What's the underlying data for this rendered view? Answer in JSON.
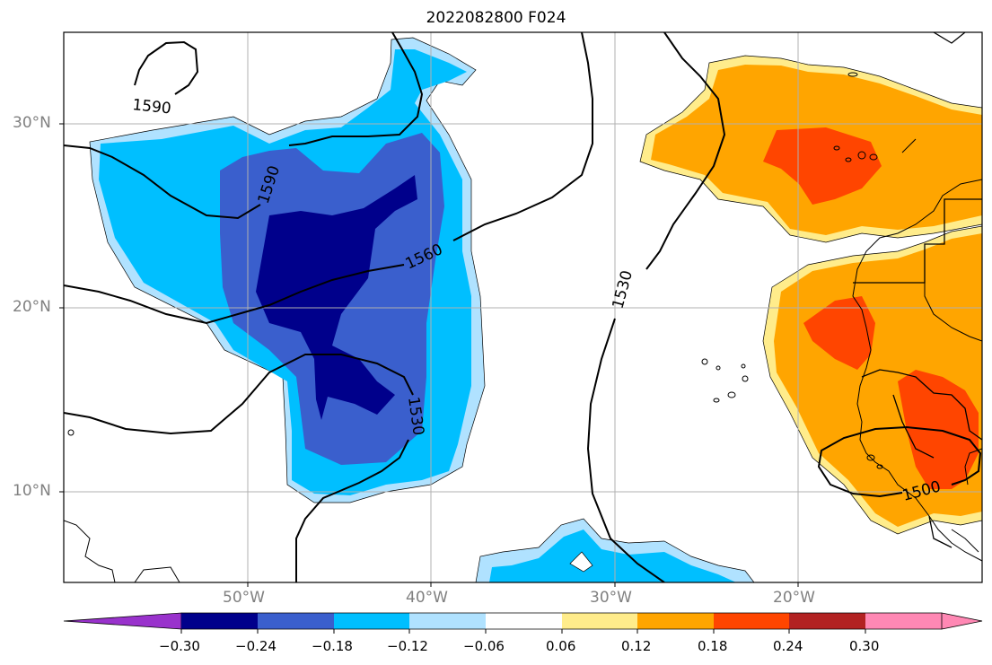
{
  "title": "2022082800 F024",
  "map": {
    "lon_labels": [
      "50°W",
      "40°W",
      "30°W",
      "20°W"
    ],
    "lat_labels": [
      "30°N",
      "20°N",
      "10°N"
    ],
    "contour_labels": [
      "1590",
      "1590",
      "1560",
      "1530",
      "1530",
      "1500"
    ]
  },
  "colorbar": {
    "ticks": [
      "−0.30",
      "−0.24",
      "−0.18",
      "−0.12",
      "−0.06",
      "0.06",
      "0.12",
      "0.18",
      "0.24",
      "0.30"
    ],
    "colors": [
      "#9932cc",
      "#00008b",
      "#3a5fcd",
      "#00bfff",
      "#b0e2ff",
      "#ffffff",
      "#ffec8b",
      "#ffa500",
      "#ff4500",
      "#b22222",
      "#ff88b4"
    ]
  }
}
